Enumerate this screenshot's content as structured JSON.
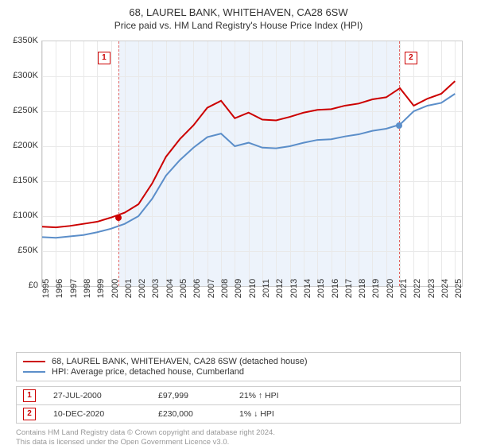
{
  "title": "68, LAUREL BANK, WHITEHAVEN, CA28 6SW",
  "subtitle": "Price paid vs. HM Land Registry's House Price Index (HPI)",
  "chart": {
    "type": "line",
    "background_color": "#ffffff",
    "grid_color": "#e9e9e9",
    "band_color": "#edf3fb",
    "label_fontsize": 11,
    "title_fontsize": 13,
    "x_years": [
      1995,
      1996,
      1997,
      1998,
      1999,
      2000,
      2001,
      2002,
      2003,
      2004,
      2005,
      2006,
      2007,
      2008,
      2009,
      2010,
      2011,
      2012,
      2013,
      2014,
      2015,
      2016,
      2017,
      2018,
      2019,
      2020,
      2021,
      2022,
      2023,
      2024,
      2025
    ],
    "y_ticks_k": [
      0,
      50,
      100,
      150,
      200,
      250,
      300,
      350
    ],
    "y_tick_prefix": "£",
    "y_tick_suffix": "K",
    "ylim_k": [
      0,
      350
    ],
    "xlim_years": [
      1995,
      2025.5
    ],
    "series": [
      {
        "name": "price_paid",
        "color": "#cc0000",
        "line_width": 2,
        "values_k_by_year": {
          "1995": 85,
          "1996": 84,
          "1997": 86,
          "1998": 89,
          "1999": 92,
          "2000": 98,
          "2001": 105,
          "2002": 117,
          "2003": 147,
          "2004": 185,
          "2005": 210,
          "2006": 230,
          "2007": 255,
          "2008": 265,
          "2009": 240,
          "2010": 248,
          "2011": 238,
          "2012": 237,
          "2013": 242,
          "2014": 248,
          "2015": 252,
          "2016": 253,
          "2017": 258,
          "2018": 261,
          "2019": 267,
          "2020": 270,
          "2021": 283,
          "2022": 258,
          "2023": 268,
          "2024": 275,
          "2025": 293
        }
      },
      {
        "name": "hpi",
        "color": "#5b8ec9",
        "line_width": 2,
        "values_k_by_year": {
          "1995": 70,
          "1996": 69,
          "1997": 71,
          "1998": 73,
          "1999": 77,
          "2000": 82,
          "2001": 89,
          "2002": 100,
          "2003": 125,
          "2004": 158,
          "2005": 180,
          "2006": 198,
          "2007": 213,
          "2008": 218,
          "2009": 200,
          "2010": 205,
          "2011": 198,
          "2012": 197,
          "2013": 200,
          "2014": 205,
          "2015": 209,
          "2016": 210,
          "2017": 214,
          "2018": 217,
          "2019": 222,
          "2020": 225,
          "2021": 231,
          "2022": 250,
          "2023": 258,
          "2024": 262,
          "2025": 275
        }
      }
    ],
    "marker_lines": [
      {
        "label": "1",
        "year": 2000.56,
        "box_year": 1999.5,
        "box_yk": 326,
        "dot_yk": 98,
        "dot_color": "#cc0000"
      },
      {
        "label": "2",
        "year": 2020.94,
        "box_year": 2021.8,
        "box_yk": 326,
        "dot_yk": 230,
        "dot_color": "#5b8ec9"
      }
    ],
    "band_years": [
      2000.56,
      2020.94
    ]
  },
  "legend": {
    "items": [
      {
        "color": "#cc0000",
        "label": "68, LAUREL BANK, WHITEHAVEN, CA28 6SW (detached house)"
      },
      {
        "color": "#5b8ec9",
        "label": "HPI: Average price, detached house, Cumberland"
      }
    ]
  },
  "sales": [
    {
      "n": "1",
      "date": "27-JUL-2000",
      "price": "£97,999",
      "pct": "21% ↑ HPI"
    },
    {
      "n": "2",
      "date": "10-DEC-2020",
      "price": "£230,000",
      "pct": "1% ↓ HPI"
    }
  ],
  "footer_line1": "Contains HM Land Registry data © Crown copyright and database right 2024.",
  "footer_line2": "This data is licensed under the Open Government Licence v3.0."
}
